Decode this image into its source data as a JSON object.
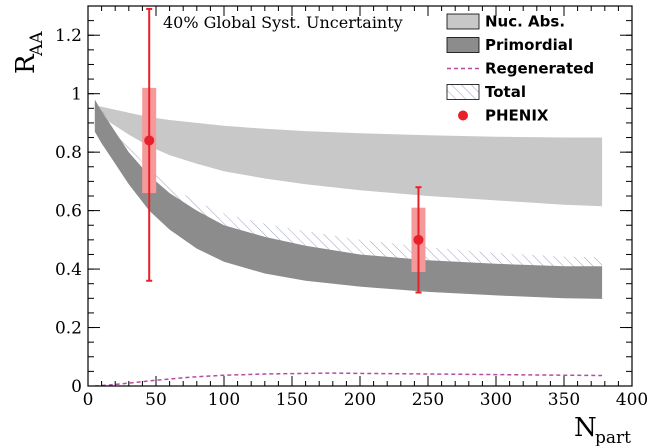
{
  "chart_data": {
    "type": "line",
    "annotation": "40% Global Syst. Uncertainty",
    "xlabel_main": "N",
    "xlabel_sub": "part",
    "ylabel_main": "R",
    "ylabel_sub": "AA",
    "xlim": [
      0,
      400
    ],
    "ylim": [
      0,
      1.3
    ],
    "x_ticks": [
      0,
      50,
      100,
      150,
      200,
      250,
      300,
      350,
      400
    ],
    "y_ticks": [
      0,
      0.2,
      0.4,
      0.6,
      0.8,
      1,
      1.2
    ],
    "x_tick_labels": [
      "0",
      "50",
      "100",
      "150",
      "200",
      "250",
      "300",
      "350",
      "400"
    ],
    "y_tick_labels": [
      "0",
      "0.2",
      "0.4",
      "0.6",
      "0.8",
      "1",
      "1.2"
    ],
    "legend_position": "top-right",
    "series": [
      {
        "name": "Nuc. Abs.",
        "style": "band",
        "color": "#c8c8c8",
        "x": [
          5,
          10,
          20,
          30,
          45,
          60,
          80,
          100,
          130,
          160,
          200,
          250,
          300,
          350,
          378
        ],
        "upper": [
          0.96,
          0.955,
          0.945,
          0.935,
          0.92,
          0.91,
          0.9,
          0.89,
          0.88,
          0.872,
          0.865,
          0.858,
          0.853,
          0.85,
          0.85
        ],
        "lower": [
          0.94,
          0.92,
          0.89,
          0.86,
          0.82,
          0.79,
          0.76,
          0.735,
          0.71,
          0.69,
          0.67,
          0.65,
          0.635,
          0.62,
          0.615
        ]
      },
      {
        "name": "Primordial",
        "style": "band",
        "color": "#8c8c8c",
        "x": [
          5,
          10,
          20,
          30,
          45,
          60,
          80,
          100,
          130,
          160,
          200,
          250,
          300,
          350,
          378
        ],
        "upper": [
          0.98,
          0.94,
          0.87,
          0.8,
          0.72,
          0.66,
          0.6,
          0.55,
          0.51,
          0.48,
          0.45,
          0.43,
          0.418,
          0.41,
          0.41
        ],
        "lower": [
          0.87,
          0.83,
          0.76,
          0.69,
          0.6,
          0.535,
          0.47,
          0.425,
          0.385,
          0.36,
          0.34,
          0.322,
          0.31,
          0.3,
          0.298
        ]
      },
      {
        "name": "Regenerated",
        "style": "dashed-line",
        "color": "#b44ca0",
        "x": [
          5,
          15,
          30,
          50,
          75,
          100,
          130,
          160,
          180,
          200,
          250,
          300,
          350,
          378
        ],
        "y": [
          0.0,
          0.003,
          0.01,
          0.02,
          0.03,
          0.037,
          0.041,
          0.043,
          0.044,
          0.043,
          0.041,
          0.039,
          0.037,
          0.036
        ]
      },
      {
        "name": "Total",
        "style": "hatched-band",
        "color": "#8a94b8",
        "x": [
          5,
          10,
          20,
          30,
          45,
          60,
          80,
          100,
          130,
          160,
          200,
          250,
          300,
          350,
          378
        ],
        "upper": [
          0.98,
          0.945,
          0.88,
          0.82,
          0.74,
          0.685,
          0.63,
          0.59,
          0.555,
          0.53,
          0.5,
          0.475,
          0.455,
          0.443,
          0.44
        ],
        "lower": [
          0.87,
          0.835,
          0.77,
          0.705,
          0.625,
          0.565,
          0.505,
          0.465,
          0.43,
          0.405,
          0.385,
          0.365,
          0.35,
          0.338,
          0.333
        ]
      },
      {
        "name": "PHENIX",
        "style": "points",
        "color": "#e8202a",
        "box_color": "#f49a9a",
        "points": [
          {
            "x": 45,
            "y": 0.84,
            "stat_low": 0.36,
            "stat_high": 1.29,
            "syst_low": 0.66,
            "syst_high": 1.02
          },
          {
            "x": 243,
            "y": 0.5,
            "stat_low": 0.32,
            "stat_high": 0.68,
            "syst_low": 0.39,
            "syst_high": 0.61
          }
        ]
      }
    ]
  }
}
